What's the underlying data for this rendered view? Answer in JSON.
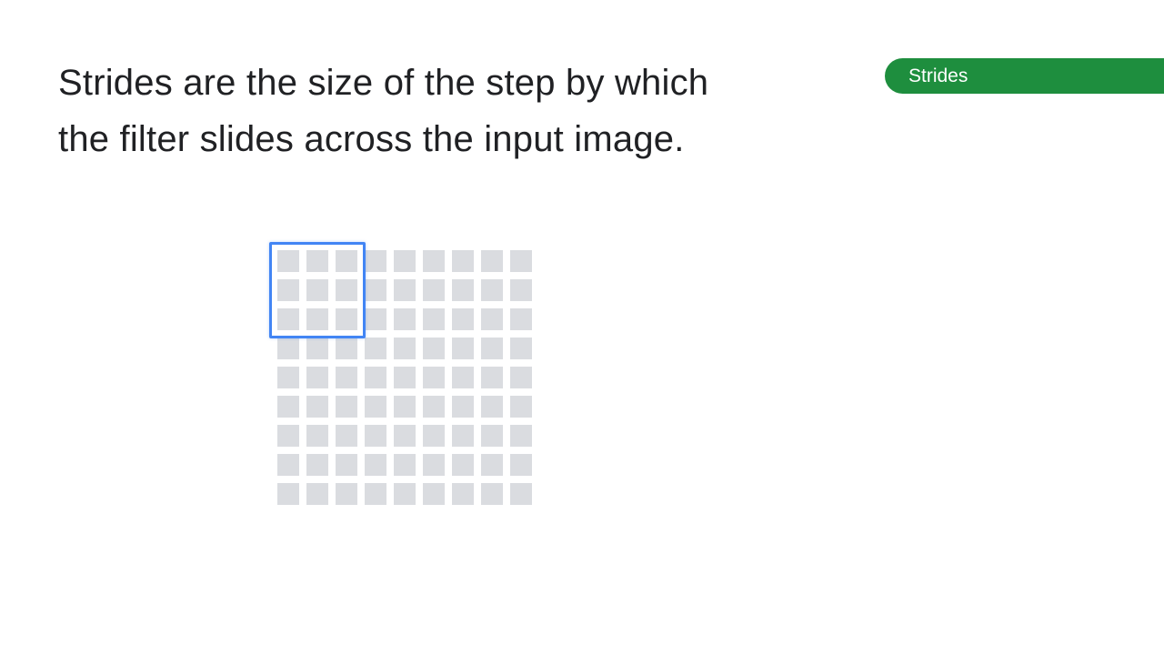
{
  "slide": {
    "title_lines": [
      "Strides are the size of the step by which",
      "the filter slides across the input image."
    ],
    "section_tag": "Strides"
  },
  "diagram": {
    "input_grid_rows": 9,
    "input_grid_cols": 9,
    "filter_rows": 3,
    "filter_cols": 3,
    "filter_position_row": 0,
    "filter_position_col": 0
  },
  "colors": {
    "title_text": "#202124",
    "tag_background": "#1e8e3e",
    "tag_text": "#ffffff",
    "cell_fill": "#dadce0",
    "filter_border": "#4285f4"
  }
}
